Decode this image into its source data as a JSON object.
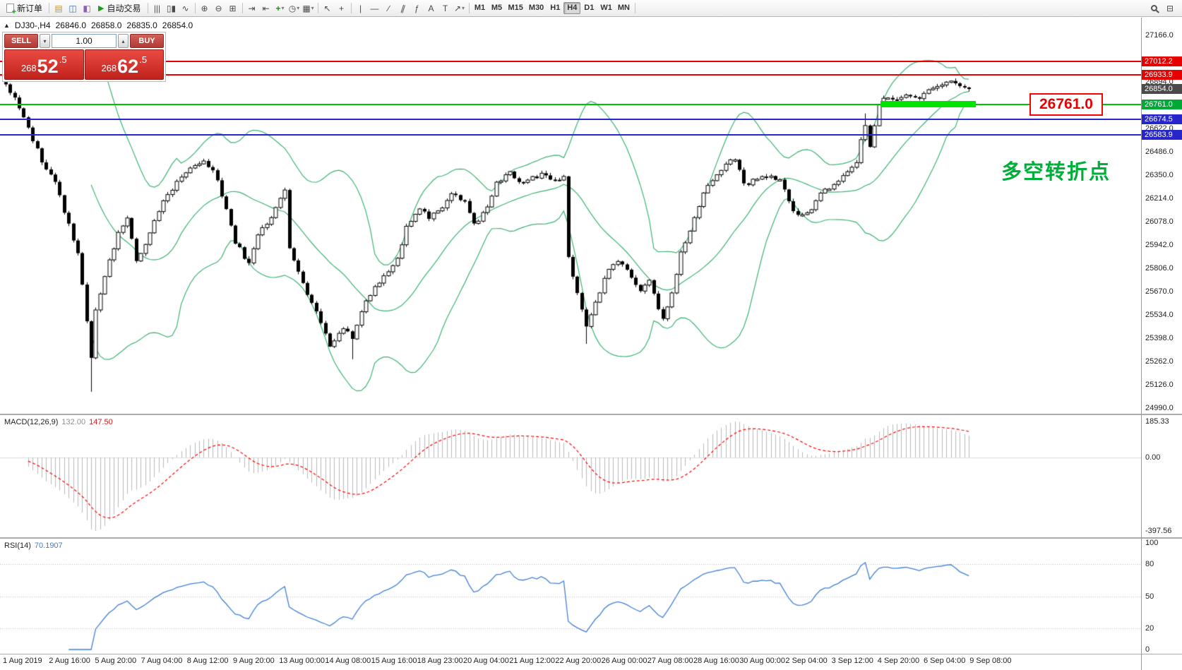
{
  "toolbar": {
    "caret_glyph": "▾",
    "timeframes": [
      "M1",
      "M5",
      "M15",
      "M30",
      "H1",
      "H4",
      "D1",
      "W1",
      "MN"
    ],
    "active_timeframe": "H4",
    "items": [
      {
        "type": "button",
        "name": "new-order-button",
        "icon": "new-page",
        "label": "新订单"
      },
      {
        "type": "sep"
      },
      {
        "type": "icon",
        "name": "charts-icon",
        "glyph": "▤",
        "color": "#bd973c"
      },
      {
        "type": "icon",
        "name": "market-watch-icon",
        "glyph": "◫",
        "color": "#3f6fb5"
      },
      {
        "type": "icon",
        "name": "navigator-icon",
        "glyph": "◧",
        "color": "#8a63b0"
      },
      {
        "type": "button",
        "name": "autotrading-button",
        "icon": "play",
        "label": "自动交易"
      },
      {
        "type": "sep"
      },
      {
        "type": "icon",
        "name": "bar-chart-icon",
        "glyph": "|||"
      },
      {
        "type": "icon",
        "name": "candlestick-chart-icon",
        "glyph": "▯▮"
      },
      {
        "type": "icon",
        "name": "line-chart-icon",
        "glyph": "∿"
      },
      {
        "type": "sep"
      },
      {
        "type": "icon",
        "name": "zoom-in-icon",
        "glyph": "⊕"
      },
      {
        "type": "icon",
        "name": "zoom-out-icon",
        "glyph": "⊖"
      },
      {
        "type": "icon",
        "name": "tile-windows-icon",
        "glyph": "⊞"
      },
      {
        "type": "sep"
      },
      {
        "type": "icon",
        "name": "auto-scroll-icon",
        "glyph": "⇥"
      },
      {
        "type": "icon",
        "name": "chart-shift-icon",
        "glyph": "⇤"
      },
      {
        "type": "icon",
        "name": "indicators-icon",
        "glyph": "+",
        "color": "#149414",
        "bold": true,
        "caret": true
      },
      {
        "type": "icon",
        "name": "periods-icon",
        "glyph": "◷",
        "caret": true
      },
      {
        "type": "icon",
        "name": "templates-icon",
        "glyph": "▦",
        "caret": true
      },
      {
        "type": "sep"
      },
      {
        "type": "icon",
        "name": "cursor-icon",
        "glyph": "↖"
      },
      {
        "type": "icon",
        "name": "crosshair-icon",
        "glyph": "+"
      },
      {
        "type": "sep"
      },
      {
        "type": "icon",
        "name": "vertical-line-icon",
        "glyph": "|"
      },
      {
        "type": "icon",
        "name": "horizontal-line-icon",
        "glyph": "—"
      },
      {
        "type": "icon",
        "name": "trendline-icon",
        "glyph": "∕"
      },
      {
        "type": "icon",
        "name": "channel-icon",
        "glyph": "∥",
        "rot": true
      },
      {
        "type": "icon",
        "name": "fibonacci-icon",
        "glyph": "ƒ"
      },
      {
        "type": "icon",
        "name": "text-icon",
        "glyph": "A"
      },
      {
        "type": "icon",
        "name": "text-label-icon",
        "glyph": "T"
      },
      {
        "type": "icon",
        "name": "arrows-icon",
        "glyph": "↗",
        "caret": true
      },
      {
        "type": "sep"
      },
      {
        "type": "timeframes"
      },
      {
        "type": "sep"
      }
    ],
    "right_items": [
      {
        "name": "search-icon",
        "css": "lens"
      },
      {
        "name": "data-window-icon",
        "glyph": "⊟"
      }
    ]
  },
  "chart": {
    "symbol_line": {
      "toggle_glyph": "▲",
      "symbol": "DJ30-,H4",
      "open": "26846.0",
      "high": "26858.0",
      "low": "26835.0",
      "close": "26854.0"
    },
    "one_click": {
      "sell_label": "SELL",
      "buy_label": "BUY",
      "volume": "1.00",
      "spin_down_glyph": "▾",
      "spin_up_glyph": "▴",
      "sell_price": "26852.5",
      "buy_price": "26862.5",
      "sell_parts": {
        "a": "268",
        "b": "52",
        "c": ".5"
      },
      "buy_parts": {
        "a": "268",
        "b": "62",
        "c": ".5"
      }
    },
    "annotations": {
      "price_box": "26761.0",
      "note": "多空转折点",
      "highlight_rect": {
        "from_bar": 195,
        "to_bar": 214,
        "price": 26761.0,
        "color": "#00e400"
      }
    },
    "levels": [
      {
        "price": 27012.2,
        "color": "#e60000"
      },
      {
        "price": 26933.9,
        "color": "#e60000"
      },
      {
        "price": 26761.0,
        "color": "#00c400"
      },
      {
        "price": 26674.5,
        "color": "#2727c9"
      },
      {
        "price": 26583.9,
        "color": "#2727c9"
      }
    ],
    "price_tags": [
      {
        "text": "27012.2",
        "color": "#e60000"
      },
      {
        "text": "26933.9",
        "color": "#e60000"
      },
      {
        "text": "26854.0",
        "color": "#4a4a4a"
      },
      {
        "text": "26761.0",
        "color": "#00a838"
      },
      {
        "text": "26674.5",
        "color": "#2727c9"
      },
      {
        "text": "26583.9",
        "color": "#2727c9"
      }
    ],
    "scale_labels": [
      "27166.0",
      "26894.0",
      "26622.0",
      "26486.0",
      "26350.0",
      "26214.0",
      "26078.0",
      "25942.0",
      "25806.0",
      "25670.0",
      "25534.0",
      "25398.0",
      "25262.0",
      "25126.0",
      "24990.0"
    ]
  },
  "macd": {
    "name": "MACD(12,26,9)",
    "main_value": "132.00",
    "signal_value": "147.50",
    "scale_top": "185.33",
    "scale_zero": "0.00",
    "scale_bottom": "-397.56"
  },
  "rsi": {
    "name": "RSI(14)",
    "value": "70.1907",
    "levels": [
      80,
      50,
      20
    ],
    "scale_labels": [
      "100",
      "80",
      "50",
      "20",
      "0"
    ]
  },
  "chart_data": {
    "type": "candlestick",
    "title": "DJ30-,H4",
    "y_range": [
      24990.0,
      27166.0
    ],
    "bars": 215,
    "indicators": [
      "Bollinger Bands(20,2)",
      "MACD(12,26,9)",
      "RSI(14)"
    ],
    "bollinger": {
      "period": 20,
      "deviation": 2,
      "color": "#3cb371"
    },
    "close_path": [
      [
        0,
        26880
      ],
      [
        2,
        26790
      ],
      [
        5,
        26620
      ],
      [
        8,
        26430
      ],
      [
        11,
        26300
      ],
      [
        14,
        26060
      ],
      [
        16,
        25900
      ],
      [
        18,
        25500
      ],
      [
        19,
        25280
      ],
      [
        20,
        25560
      ],
      [
        22,
        25760
      ],
      [
        25,
        26010
      ],
      [
        27,
        26100
      ],
      [
        29,
        25860
      ],
      [
        31,
        25950
      ],
      [
        35,
        26200
      ],
      [
        38,
        26310
      ],
      [
        41,
        26400
      ],
      [
        44,
        26430
      ],
      [
        46,
        26380
      ],
      [
        49,
        26160
      ],
      [
        51,
        25960
      ],
      [
        54,
        25830
      ],
      [
        56,
        26000
      ],
      [
        59,
        26110
      ],
      [
        62,
        26260
      ],
      [
        63,
        25920
      ],
      [
        65,
        25790
      ],
      [
        67,
        25660
      ],
      [
        70,
        25490
      ],
      [
        72,
        25360
      ],
      [
        75,
        25460
      ],
      [
        77,
        25390
      ],
      [
        79,
        25560
      ],
      [
        81,
        25660
      ],
      [
        84,
        25760
      ],
      [
        87,
        25860
      ],
      [
        89,
        26050
      ],
      [
        92,
        26150
      ],
      [
        94,
        26100
      ],
      [
        97,
        26150
      ],
      [
        99,
        26250
      ],
      [
        102,
        26200
      ],
      [
        104,
        26060
      ],
      [
        107,
        26160
      ],
      [
        109,
        26300
      ],
      [
        112,
        26360
      ],
      [
        114,
        26310
      ],
      [
        117,
        26330
      ],
      [
        119,
        26350
      ],
      [
        122,
        26310
      ],
      [
        124,
        26340
      ],
      [
        125,
        25860
      ],
      [
        127,
        25660
      ],
      [
        129,
        25460
      ],
      [
        131,
        25610
      ],
      [
        134,
        25800
      ],
      [
        136,
        25850
      ],
      [
        139,
        25760
      ],
      [
        141,
        25660
      ],
      [
        143,
        25730
      ],
      [
        146,
        25500
      ],
      [
        148,
        25660
      ],
      [
        150,
        25900
      ],
      [
        153,
        26100
      ],
      [
        155,
        26250
      ],
      [
        158,
        26350
      ],
      [
        160,
        26420
      ],
      [
        162,
        26450
      ],
      [
        164,
        26290
      ],
      [
        167,
        26330
      ],
      [
        169,
        26340
      ],
      [
        172,
        26330
      ],
      [
        174,
        26190
      ],
      [
        176,
        26110
      ],
      [
        179,
        26160
      ],
      [
        181,
        26250
      ],
      [
        184,
        26290
      ],
      [
        186,
        26350
      ],
      [
        189,
        26410
      ],
      [
        190,
        26550
      ],
      [
        191,
        26650
      ],
      [
        192,
        26510
      ],
      [
        194,
        26760
      ],
      [
        195,
        26800
      ],
      [
        198,
        26790
      ],
      [
        200,
        26820
      ],
      [
        203,
        26800
      ],
      [
        205,
        26850
      ],
      [
        208,
        26880
      ],
      [
        210,
        26900
      ],
      [
        212,
        26870
      ],
      [
        214,
        26854
      ]
    ],
    "spikes": [
      {
        "i": 19,
        "low": 25085
      },
      {
        "i": 77,
        "low": 25275
      },
      {
        "i": 129,
        "low": 25365
      },
      {
        "i": 191,
        "high": 26710
      },
      {
        "i": 0,
        "high": 26895
      }
    ],
    "x_labels": [
      "1 Aug 2019",
      "2 Aug 16:00",
      "5 Aug 20:00",
      "7 Aug 04:00",
      "8 Aug 12:00",
      "9 Aug 20:00",
      "13 Aug 00:00",
      "14 Aug 08:00",
      "15 Aug 16:00",
      "18 Aug 23:00",
      "20 Aug 04:00",
      "21 Aug 12:00",
      "22 Aug 20:00",
      "26 Aug 00:00",
      "27 Aug 08:00",
      "28 Aug 16:00",
      "30 Aug 00:00",
      "2 Sep 04:00",
      "3 Sep 12:00",
      "4 Sep 20:00",
      "6 Sep 04:00",
      "9 Sep 08:00"
    ]
  }
}
